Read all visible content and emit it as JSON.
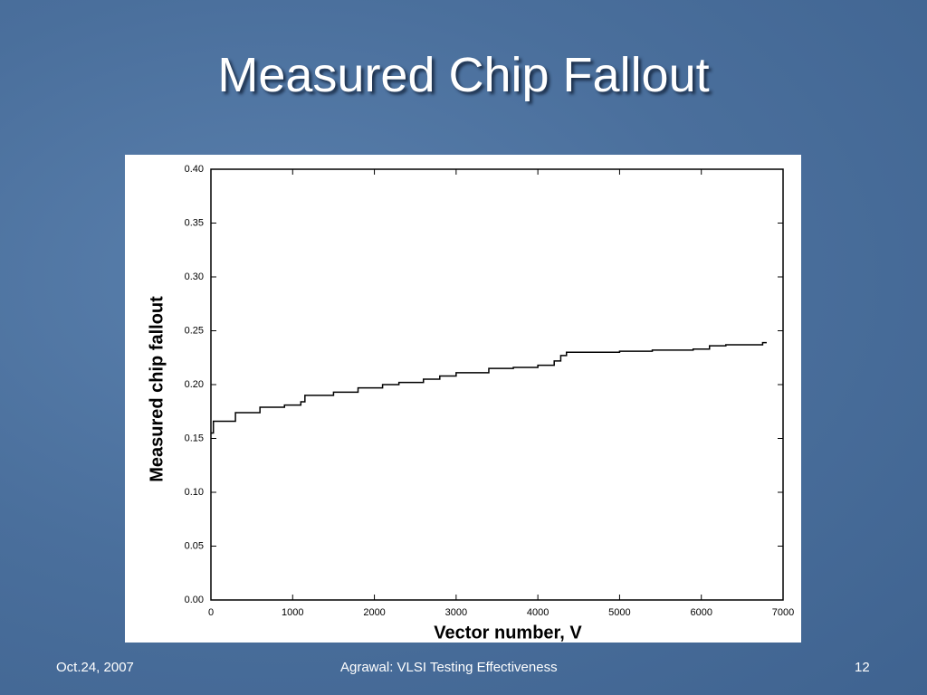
{
  "slide": {
    "title": "Measured Chip Fallout"
  },
  "footer": {
    "date": "Oct.24, 2007",
    "center": "Agrawal: VLSI Testing Effectiveness",
    "page": "12"
  },
  "chart_data": {
    "type": "line",
    "xlabel": "Vector number, V",
    "ylabel": "Measured chip fallout",
    "x": [
      0,
      30,
      30,
      300,
      300,
      600,
      600,
      900,
      900,
      1100,
      1100,
      1150,
      1150,
      1500,
      1500,
      1800,
      1800,
      2100,
      2100,
      2300,
      2300,
      2600,
      2600,
      2800,
      2800,
      3000,
      3000,
      3400,
      3400,
      3700,
      3700,
      4000,
      4000,
      4200,
      4200,
      4280,
      4280,
      4350,
      4350,
      5000,
      5000,
      5400,
      5400,
      5900,
      5900,
      6100,
      6100,
      6300,
      6300,
      6750,
      6750,
      6800
    ],
    "series": [
      {
        "color": "#000000",
        "values": [
          0.155,
          0.155,
          0.166,
          0.166,
          0.174,
          0.174,
          0.179,
          0.179,
          0.181,
          0.181,
          0.184,
          0.184,
          0.19,
          0.19,
          0.193,
          0.193,
          0.197,
          0.197,
          0.2,
          0.2,
          0.202,
          0.202,
          0.205,
          0.205,
          0.208,
          0.208,
          0.211,
          0.211,
          0.215,
          0.215,
          0.216,
          0.216,
          0.218,
          0.218,
          0.222,
          0.222,
          0.227,
          0.227,
          0.23,
          0.23,
          0.231,
          0.231,
          0.232,
          0.232,
          0.233,
          0.233,
          0.236,
          0.236,
          0.237,
          0.237,
          0.239,
          0.239
        ]
      }
    ],
    "xlim": [
      0,
      7000
    ],
    "xticks": [
      0,
      1000,
      2000,
      3000,
      4000,
      5000,
      6000,
      7000
    ],
    "ylim": [
      0,
      0.4
    ],
    "yticks": [
      {
        "value": 0,
        "label": "0.00"
      },
      0.05,
      {
        "value": 0.1,
        "label": "0.10"
      },
      0.15,
      {
        "value": 0.2,
        "label": "0.20"
      },
      0.25,
      {
        "value": 0.3,
        "label": "0.30"
      },
      0.35,
      {
        "value": 0.4,
        "label": "0.40"
      }
    ],
    "grid": false
  }
}
